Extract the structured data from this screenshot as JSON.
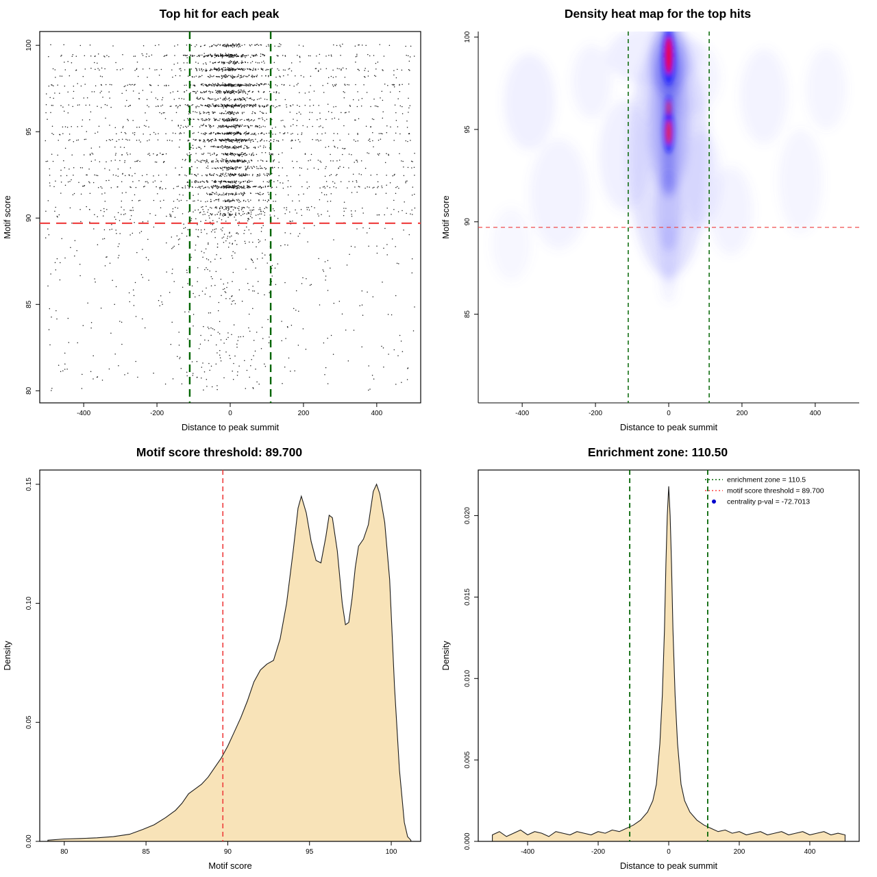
{
  "page": {
    "background": "#ffffff"
  },
  "chart_data": [
    {
      "type": "scatter",
      "title": "Top hit for each peak",
      "xlabel": "Distance to peak summit",
      "ylabel": "Motif score",
      "xlim": [
        -520,
        520
      ],
      "ylim": [
        79.3,
        100.8
      ],
      "xticks": [
        -400,
        -200,
        0,
        200,
        400
      ],
      "yticks": [
        80,
        85,
        90,
        95,
        100
      ],
      "point_color": "#000000",
      "seed": 42,
      "center_frac": 0.5,
      "tight_frac": 0.16,
      "center_sd": 60,
      "bands": [
        [
          100.0,
          110
        ],
        [
          99.4,
          230
        ],
        [
          99.0,
          90
        ],
        [
          98.6,
          200
        ],
        [
          98.2,
          120
        ],
        [
          97.7,
          240
        ],
        [
          97.3,
          150
        ],
        [
          96.9,
          110
        ],
        [
          96.5,
          240
        ],
        [
          96.1,
          100
        ],
        [
          95.7,
          130
        ],
        [
          95.3,
          150
        ],
        [
          94.9,
          190
        ],
        [
          94.5,
          220
        ],
        [
          94.1,
          100
        ],
        [
          93.7,
          140
        ],
        [
          93.3,
          170
        ],
        [
          92.9,
          120
        ],
        [
          92.5,
          150
        ],
        [
          92.1,
          140
        ],
        [
          91.8,
          240
        ],
        [
          91.4,
          100
        ],
        [
          91.0,
          80
        ],
        [
          90.6,
          70
        ],
        [
          90.2,
          60
        ]
      ],
      "low_scatter": {
        "n": 650,
        "ymax": 90.5,
        "yspread": 10.5
      },
      "vlines": [
        {
          "x": -110.5,
          "color": "#006400",
          "width": 2.4,
          "dash": "11,7"
        },
        {
          "x": 110.5,
          "color": "#006400",
          "width": 2.4,
          "dash": "11,7"
        }
      ],
      "hlines": [
        {
          "y": 89.7,
          "color": "#ee3a3a",
          "width": 2.2,
          "dash": "15,9"
        }
      ]
    },
    {
      "type": "heatmap",
      "title": "Density heat map for the top hits",
      "xlabel": "Distance to peak summit",
      "ylabel": "Motif score",
      "xlim": [
        -520,
        520
      ],
      "ylim": [
        80.2,
        100.3
      ],
      "xticks": [
        -400,
        -200,
        0,
        200,
        400
      ],
      "yticks": [
        85,
        90,
        95,
        100
      ],
      "box": "axes",
      "blobs_soft": [
        [
          -380,
          96.5,
          70,
          2.6,
          "#7070ff",
          0.1
        ],
        [
          -300,
          91.5,
          80,
          3.0,
          "#7070ff",
          0.08
        ],
        [
          -210,
          97.6,
          55,
          2.0,
          "#7070ff",
          0.08
        ],
        [
          -120,
          93.6,
          70,
          3.0,
          "#7070ff",
          0.1
        ],
        [
          -430,
          88.8,
          55,
          2.0,
          "#7070ff",
          0.06
        ],
        [
          90,
          92.3,
          55,
          2.6,
          "#7070ff",
          0.1
        ],
        [
          170,
          90.6,
          60,
          2.4,
          "#7070ff",
          0.08
        ],
        [
          260,
          96.8,
          65,
          2.6,
          "#7070ff",
          0.08
        ],
        [
          360,
          92.2,
          60,
          2.8,
          "#7070ff",
          0.07
        ],
        [
          430,
          97.2,
          55,
          2.2,
          "#7070ff",
          0.07
        ],
        [
          -40,
          99.0,
          130,
          1.6,
          "#6060ff",
          0.1
        ],
        [
          60,
          97.8,
          80,
          2.0,
          "#6a6aff",
          0.08
        ],
        [
          0,
          93.5,
          110,
          6.5,
          "#5050f5",
          0.16
        ],
        [
          0,
          95.5,
          55,
          4.0,
          "#4040f0",
          0.28
        ],
        [
          0,
          98.8,
          50,
          2.0,
          "#4040f0",
          0.32
        ],
        [
          0,
          96.3,
          22,
          5.0,
          "#3030e8",
          0.38
        ],
        [
          0,
          90.6,
          35,
          2.2,
          "#5050f5",
          0.22
        ],
        [
          0,
          88.3,
          28,
          1.6,
          "#6060ff",
          0.13
        ],
        [
          0,
          86.6,
          22,
          1.0,
          "#7070ff",
          0.08
        ]
      ],
      "blobs_core": [
        [
          0,
          98.9,
          18,
          1.5,
          "#1414ff",
          0.7
        ],
        [
          0,
          94.9,
          15,
          1.2,
          "#1414ff",
          0.65
        ],
        [
          0,
          96.15,
          11,
          0.7,
          "#1414ff",
          0.55
        ],
        [
          0,
          99.0,
          9,
          1.0,
          "#ff0000",
          0.95
        ],
        [
          0,
          94.85,
          7.5,
          0.65,
          "#ff1400",
          0.88
        ],
        [
          0,
          96.15,
          5.5,
          0.4,
          "#ff2800",
          0.75
        ]
      ],
      "vlines": [
        {
          "x": -110.5,
          "color": "#006400",
          "width": 1.5,
          "dash": "6,5"
        },
        {
          "x": 110.5,
          "color": "#006400",
          "width": 1.5,
          "dash": "6,5"
        }
      ],
      "hlines": [
        {
          "y": 89.7,
          "color": "#ee3a3a",
          "width": 1.1,
          "dash": "6,5"
        }
      ]
    },
    {
      "type": "area",
      "title": "Motif score threshold: 89.700",
      "xlabel": "Motif score",
      "ylabel": "Density",
      "xlim": [
        78.5,
        101.8
      ],
      "ylim": [
        0,
        0.156
      ],
      "xticks": [
        80,
        85,
        90,
        95,
        100
      ],
      "yticks": [
        0,
        0.05,
        0.1,
        0.15
      ],
      "ytick_labels": [
        "0.00",
        "0.05",
        "0.10",
        "0.15"
      ],
      "fill": "#f8e3b8",
      "line_color": "#1a1a1a",
      "points": [
        [
          79.0,
          0.0005
        ],
        [
          80,
          0.001
        ],
        [
          81,
          0.0012
        ],
        [
          82,
          0.0015
        ],
        [
          83,
          0.002
        ],
        [
          84,
          0.003
        ],
        [
          84.8,
          0.005
        ],
        [
          85.5,
          0.007
        ],
        [
          86.2,
          0.01
        ],
        [
          86.8,
          0.013
        ],
        [
          87.2,
          0.016
        ],
        [
          87.6,
          0.02
        ],
        [
          88.0,
          0.022
        ],
        [
          88.4,
          0.024
        ],
        [
          88.8,
          0.027
        ],
        [
          89.2,
          0.031
        ],
        [
          89.6,
          0.035
        ],
        [
          90.0,
          0.04
        ],
        [
          90.4,
          0.046
        ],
        [
          90.8,
          0.052
        ],
        [
          91.2,
          0.059
        ],
        [
          91.6,
          0.067
        ],
        [
          92.0,
          0.072
        ],
        [
          92.4,
          0.0745
        ],
        [
          92.8,
          0.076
        ],
        [
          93.2,
          0.085
        ],
        [
          93.6,
          0.1
        ],
        [
          94.0,
          0.122
        ],
        [
          94.3,
          0.14
        ],
        [
          94.5,
          0.145
        ],
        [
          94.8,
          0.138
        ],
        [
          95.1,
          0.126
        ],
        [
          95.4,
          0.118
        ],
        [
          95.7,
          0.117
        ],
        [
          96.0,
          0.128
        ],
        [
          96.2,
          0.137
        ],
        [
          96.4,
          0.136
        ],
        [
          96.7,
          0.122
        ],
        [
          97.0,
          0.1
        ],
        [
          97.2,
          0.091
        ],
        [
          97.4,
          0.092
        ],
        [
          97.6,
          0.102
        ],
        [
          97.8,
          0.115
        ],
        [
          98.0,
          0.124
        ],
        [
          98.3,
          0.127
        ],
        [
          98.6,
          0.133
        ],
        [
          98.9,
          0.147
        ],
        [
          99.1,
          0.15
        ],
        [
          99.3,
          0.146
        ],
        [
          99.6,
          0.134
        ],
        [
          99.9,
          0.11
        ],
        [
          100.2,
          0.065
        ],
        [
          100.5,
          0.03
        ],
        [
          100.8,
          0.008
        ],
        [
          101.0,
          0.002
        ],
        [
          101.2,
          0.0005
        ]
      ],
      "vlines": [
        {
          "x": 89.7,
          "color": "#ee3a3a",
          "width": 1.6,
          "dash": "7,5"
        }
      ]
    },
    {
      "type": "area",
      "title": "Enrichment zone: 110.50",
      "xlabel": "Distance to peak summit",
      "ylabel": "Density",
      "xlim": [
        -540,
        540
      ],
      "ylim": [
        0,
        0.0228
      ],
      "xticks": [
        -400,
        -200,
        0,
        200,
        400
      ],
      "yticks": [
        0,
        0.005,
        0.01,
        0.015,
        0.02
      ],
      "ytick_labels": [
        "0.000",
        "0.005",
        "0.010",
        "0.015",
        "0.020"
      ],
      "fill": "#f8e3b8",
      "line_color": "#1a1a1a",
      "points": [
        [
          -500,
          0.0004
        ],
        [
          -480,
          0.0006
        ],
        [
          -460,
          0.0003
        ],
        [
          -440,
          0.0005
        ],
        [
          -420,
          0.0007
        ],
        [
          -400,
          0.0004
        ],
        [
          -380,
          0.0006
        ],
        [
          -360,
          0.0005
        ],
        [
          -340,
          0.0003
        ],
        [
          -320,
          0.0006
        ],
        [
          -300,
          0.0005
        ],
        [
          -280,
          0.0004
        ],
        [
          -260,
          0.0006
        ],
        [
          -240,
          0.0005
        ],
        [
          -220,
          0.0004
        ],
        [
          -200,
          0.0006
        ],
        [
          -180,
          0.0005
        ],
        [
          -160,
          0.0007
        ],
        [
          -140,
          0.0006
        ],
        [
          -120,
          0.0008
        ],
        [
          -100,
          0.001
        ],
        [
          -80,
          0.0013
        ],
        [
          -60,
          0.0018
        ],
        [
          -45,
          0.0025
        ],
        [
          -35,
          0.0035
        ],
        [
          -25,
          0.006
        ],
        [
          -18,
          0.009
        ],
        [
          -12,
          0.013
        ],
        [
          -8,
          0.017
        ],
        [
          -4,
          0.02
        ],
        [
          0,
          0.0218
        ],
        [
          4,
          0.02
        ],
        [
          8,
          0.017
        ],
        [
          12,
          0.013
        ],
        [
          18,
          0.009
        ],
        [
          25,
          0.006
        ],
        [
          35,
          0.0035
        ],
        [
          45,
          0.0025
        ],
        [
          60,
          0.0018
        ],
        [
          80,
          0.0013
        ],
        [
          100,
          0.001
        ],
        [
          120,
          0.0008
        ],
        [
          140,
          0.0006
        ],
        [
          160,
          0.0007
        ],
        [
          180,
          0.0005
        ],
        [
          200,
          0.0006
        ],
        [
          220,
          0.0004
        ],
        [
          240,
          0.0005
        ],
        [
          260,
          0.0006
        ],
        [
          280,
          0.0004
        ],
        [
          300,
          0.0005
        ],
        [
          320,
          0.0006
        ],
        [
          340,
          0.0004
        ],
        [
          360,
          0.0005
        ],
        [
          380,
          0.0006
        ],
        [
          400,
          0.0004
        ],
        [
          420,
          0.0005
        ],
        [
          440,
          0.0006
        ],
        [
          460,
          0.0004
        ],
        [
          480,
          0.0005
        ],
        [
          500,
          0.0004
        ]
      ],
      "vlines": [
        {
          "x": -110.5,
          "color": "#006400",
          "width": 1.8,
          "dash": "7,5"
        },
        {
          "x": 110.5,
          "color": "#006400",
          "width": 1.8,
          "dash": "7,5"
        }
      ],
      "legend": [
        {
          "label": "enrichment zone = 110.5",
          "symbol": "line",
          "color": "#006400"
        },
        {
          "label": "motif score threshold = 89.700",
          "symbol": "line",
          "color": "#ff4040"
        },
        {
          "label": "centrality p-val = -72.7013",
          "symbol": "dot",
          "color": "#0000cd"
        }
      ]
    }
  ]
}
